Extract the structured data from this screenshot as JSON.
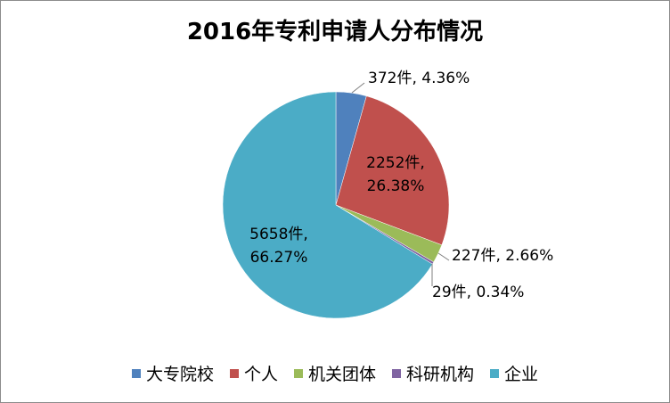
{
  "chart_data": {
    "type": "pie",
    "title": "2016年专利申请人分布情况",
    "categories": [
      "大专院校",
      "个人",
      "机关团体",
      "科研机构",
      "企业"
    ],
    "values": [
      372,
      2252,
      227,
      29,
      5658
    ],
    "percents": [
      4.36,
      26.38,
      2.66,
      0.34,
      66.27
    ],
    "data_labels": [
      {
        "line1": "372件, 4.36%"
      },
      {
        "line1": "2252件,",
        "line2": "26.38%"
      },
      {
        "line1": "227件, 2.66%"
      },
      {
        "line1": "29件, 0.34%"
      },
      {
        "line1": "5658件,",
        "line2": "66.27%"
      }
    ],
    "colors": [
      "#4f81bd",
      "#c0504d",
      "#9bbb59",
      "#8064a2",
      "#4bacc6"
    ],
    "legend_position": "bottom"
  }
}
